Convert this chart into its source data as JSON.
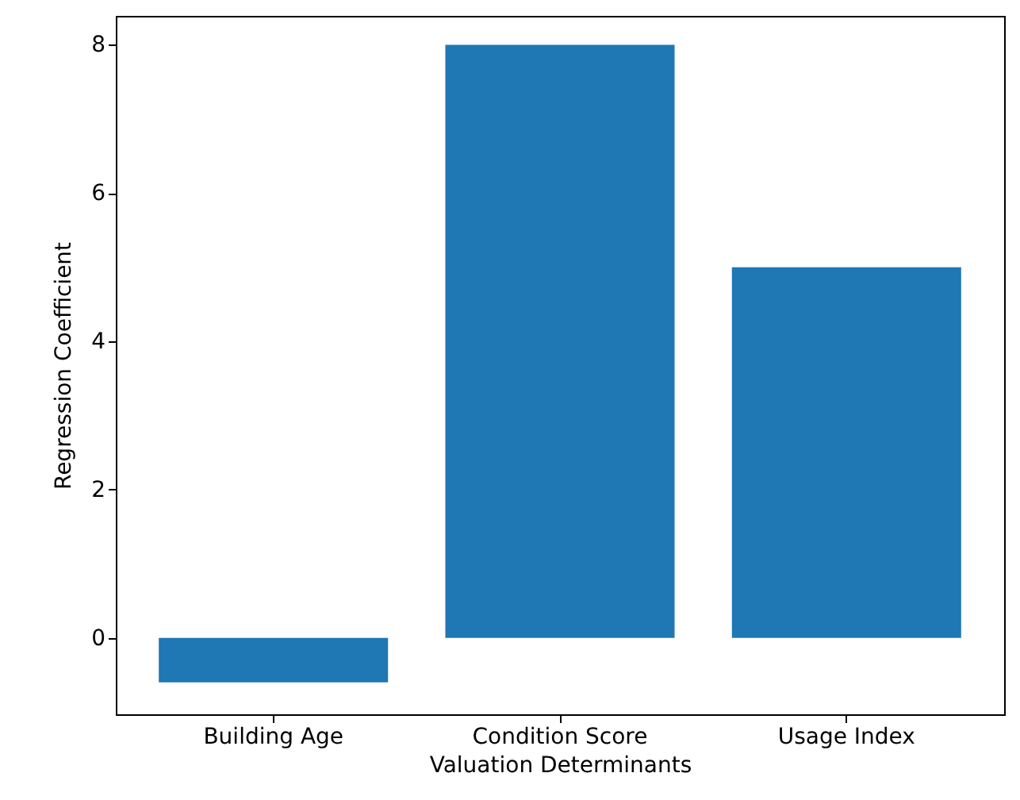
{
  "chart_data": {
    "type": "bar",
    "xlabel": "Valuation Determinants",
    "ylabel": "Regression Coefficient",
    "categories": [
      "Building Age",
      "Condition Score",
      "Usage Index"
    ],
    "values": [
      -0.6,
      8,
      5
    ],
    "color": "#1f77b4",
    "ylim": [
      -1.03,
      8.39
    ],
    "yticks": [
      0,
      2,
      4,
      6,
      8
    ],
    "grid": false
  }
}
